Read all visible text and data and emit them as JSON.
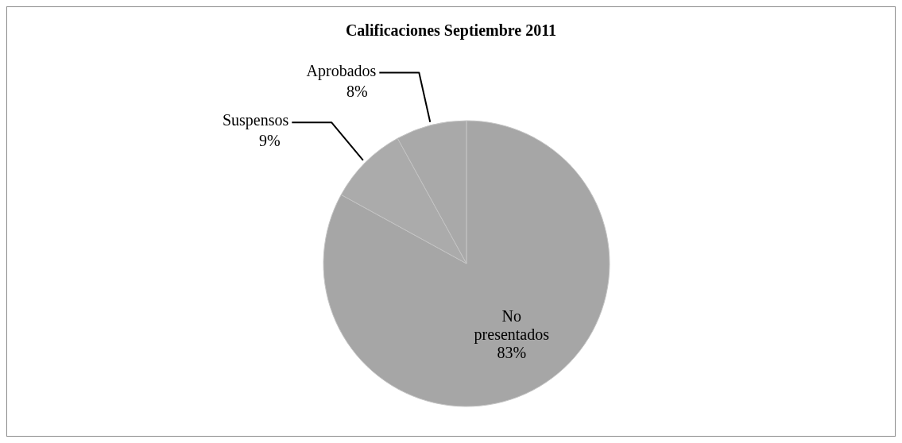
{
  "chart_data": {
    "type": "pie",
    "title": "Calificaciones Septiembre 2011",
    "categories": [
      "No presentados",
      "Suspensos",
      "Aprobados"
    ],
    "values": [
      83,
      9,
      8
    ],
    "value_labels": [
      "83%",
      "9%",
      "8%"
    ],
    "colors": [
      "#a6a6a6",
      "#ababab",
      "#a9a9a9"
    ],
    "legend": false
  }
}
